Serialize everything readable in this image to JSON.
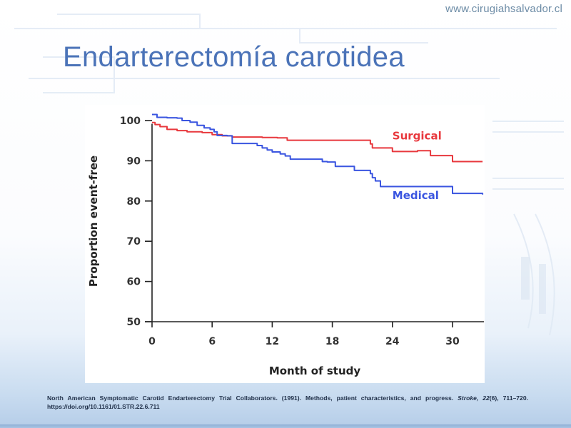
{
  "header": {
    "site_url": "www.cirugiahsalvador.cl",
    "title": "Endarterectomía carotidea"
  },
  "colors": {
    "title": "#4b73b8",
    "surgical": "#e8383d",
    "medical": "#3a55e0",
    "axis": "#222222"
  },
  "chart_data": {
    "type": "line",
    "title": "",
    "xlabel": "Month of study",
    "ylabel": "Proportion event-free",
    "xlim": [
      0,
      33
    ],
    "ylim": [
      50,
      102
    ],
    "x_ticks": [
      0,
      6,
      12,
      18,
      24,
      30
    ],
    "y_ticks": [
      50,
      60,
      70,
      80,
      90,
      100
    ],
    "grid": false,
    "legend": "inline-labels",
    "series": [
      {
        "name": "Surgical",
        "color": "#e8383d",
        "step": true,
        "points": [
          [
            0,
            99.5
          ],
          [
            0.3,
            99
          ],
          [
            0.8,
            98.5
          ],
          [
            1.5,
            97.8
          ],
          [
            2.5,
            97.5
          ],
          [
            3.5,
            97.2
          ],
          [
            5,
            97
          ],
          [
            6,
            96.5
          ],
          [
            7,
            96.2
          ],
          [
            8,
            95.9
          ],
          [
            11,
            95.8
          ],
          [
            12.5,
            95.7
          ],
          [
            13.5,
            95.1
          ],
          [
            18,
            95.1
          ],
          [
            21.3,
            95.1
          ],
          [
            21.8,
            94.2
          ],
          [
            22,
            93.2
          ],
          [
            23.5,
            93.2
          ],
          [
            24,
            92.3
          ],
          [
            26,
            92.3
          ],
          [
            26.5,
            92.5
          ],
          [
            27.6,
            92.5
          ],
          [
            27.8,
            91.3
          ],
          [
            29.8,
            91.3
          ],
          [
            30,
            89.8
          ],
          [
            33,
            89.8
          ]
        ]
      },
      {
        "name": "Medical",
        "color": "#3a55e0",
        "step": true,
        "points": [
          [
            0,
            101.5
          ],
          [
            0.5,
            100.8
          ],
          [
            1.5,
            100.7
          ],
          [
            2.5,
            100.6
          ],
          [
            3,
            100
          ],
          [
            3.8,
            99.6
          ],
          [
            4.5,
            98.8
          ],
          [
            5.2,
            98.2
          ],
          [
            5.8,
            97.8
          ],
          [
            6.2,
            97.2
          ],
          [
            6.5,
            96.3
          ],
          [
            7.5,
            96.2
          ],
          [
            8,
            94.3
          ],
          [
            10,
            94.3
          ],
          [
            10.5,
            93.8
          ],
          [
            11,
            93.2
          ],
          [
            11.5,
            92.7
          ],
          [
            12,
            92.2
          ],
          [
            12.8,
            91.7
          ],
          [
            13.3,
            91.2
          ],
          [
            13.8,
            90.4
          ],
          [
            16.5,
            90.4
          ],
          [
            17,
            89.8
          ],
          [
            17.5,
            89.7
          ],
          [
            18.3,
            88.6
          ],
          [
            20,
            88.6
          ],
          [
            20.2,
            87.6
          ],
          [
            21.5,
            87.6
          ],
          [
            21.8,
            86.8
          ],
          [
            22,
            85.8
          ],
          [
            22.3,
            85
          ],
          [
            22.8,
            83.6
          ],
          [
            29.8,
            83.6
          ],
          [
            30,
            81.9
          ],
          [
            33,
            81.6
          ]
        ]
      }
    ],
    "annotations": [
      {
        "text": "Surgical",
        "x": 24,
        "y": 95.3,
        "color": "#e8383d"
      },
      {
        "text": "Medical",
        "x": 24,
        "y": 80.5,
        "color": "#3a55e0"
      }
    ]
  },
  "citation": {
    "authors": "North American Symptomatic Carotid Endarterectomy Trial Collaborators. (1991). Methods, patient characteristics, and progress. ",
    "journal": "Stroke, 22",
    "issue_pages": "(6), 711–720. https://doi.org/10.1161/01.STR.22.6.711"
  }
}
